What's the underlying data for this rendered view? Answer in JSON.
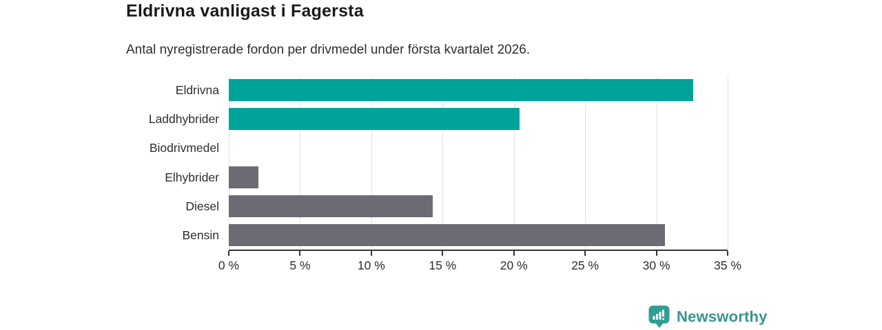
{
  "header": {
    "title": "Eldrivna vanligast i Fagersta",
    "subtitle": "Antal nyregistrerade fordon per drivmedel under första kvartalet 2026."
  },
  "chart_data": {
    "type": "bar",
    "orientation": "horizontal",
    "title": "Eldrivna vanligast i Fagersta",
    "subtitle": "Antal nyregistrerade fordon per drivmedel under första kvartalet 2026.",
    "categories": [
      "Eldrivna",
      "Laddhybrider",
      "Biodrivmedel",
      "Elhybrider",
      "Diesel",
      "Bensin"
    ],
    "values": [
      32.6,
      20.4,
      0,
      2.1,
      14.3,
      30.6
    ],
    "unit": "%",
    "xlim": [
      0,
      35
    ],
    "x_tick_values": [
      0,
      5,
      10,
      15,
      20,
      25,
      30,
      35
    ],
    "x_tick_labels": [
      "0 %",
      "5 %",
      "10 %",
      "15 %",
      "20 %",
      "25 %",
      "30 %",
      "35 %"
    ],
    "grid": true,
    "legend": false,
    "colors": {
      "highlight": "#00a39a",
      "default": "#6c6b73",
      "gridline": "#e0e0e0",
      "axis": "#333333"
    },
    "bar_colors": [
      "#00a39a",
      "#00a39a",
      "#6c6b73",
      "#6c6b73",
      "#6c6b73",
      "#6c6b73"
    ]
  },
  "footer": {
    "brand": "Newsworthy",
    "brand_color": "#3a948e",
    "icon_color": "#2f9e94"
  }
}
